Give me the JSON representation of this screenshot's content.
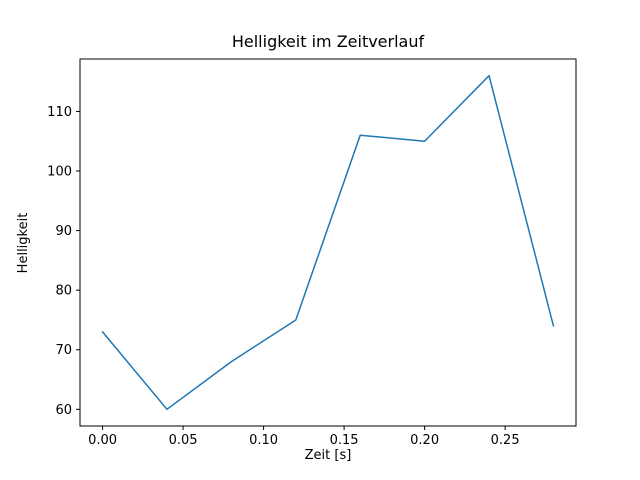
{
  "chart_data": {
    "type": "line",
    "title": "Helligkeit im Zeitverlauf",
    "xlabel": "Zeit [s]",
    "ylabel": "Helligkeit",
    "x": [
      0.0,
      0.04,
      0.08,
      0.12,
      0.16,
      0.2,
      0.24,
      0.28
    ],
    "values": [
      73,
      60,
      68,
      75,
      106,
      105,
      116,
      74
    ],
    "series_name": "Helligkeit",
    "xlim": [
      -0.014,
      0.294
    ],
    "ylim": [
      57.2,
      118.8
    ],
    "xticks": [
      0.0,
      0.05,
      0.1,
      0.15,
      0.2,
      0.25
    ],
    "xtick_labels": [
      "0.00",
      "0.05",
      "0.10",
      "0.15",
      "0.20",
      "0.25"
    ],
    "yticks": [
      60,
      70,
      80,
      90,
      100,
      110
    ],
    "ytick_labels": [
      "60",
      "70",
      "80",
      "90",
      "100",
      "110"
    ],
    "line_color": "#1f77b4",
    "line_width": 1.5,
    "axes_color": "#000000",
    "background_color": "#ffffff",
    "grid": false,
    "legend_position": "none"
  }
}
